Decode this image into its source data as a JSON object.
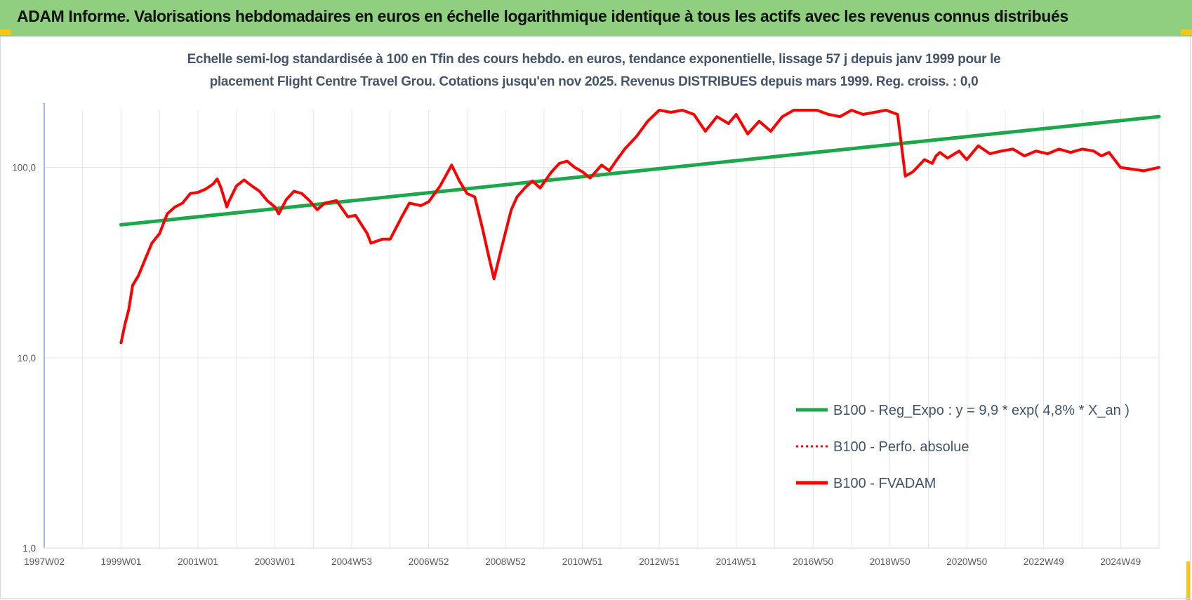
{
  "header": {
    "title": "ADAM Informe. Valorisations hebdomadaires en euros en échelle logarithmique identique à tous les actifs avec les revenus connus distribués",
    "background_color": "#8fcf7f",
    "corner_color": "#f5c518"
  },
  "chart_data": {
    "type": "line",
    "title_lines": [
      "Echelle semi-log standardisée à 100 en Tfin des cours hebdo. en euros, tendance exponentielle, lissage 57 j depuis janv 1999 pour le",
      "placement Flight Centre Travel Grou. Cotations jusqu'en nov 2025. Revenus DISTRIBUES depuis mars 1999. Reg. croiss. : 0,0"
    ],
    "y_scale": "log",
    "ylim": [
      1,
      200
    ],
    "y_ticks": [
      1,
      10,
      100
    ],
    "y_tick_labels": [
      "1,0",
      "10,0",
      "100,0"
    ],
    "xlim": [
      1997.0,
      2026.0
    ],
    "x_tick_positions": [
      1997.0,
      1999.0,
      2001.0,
      2003.0,
      2005.0,
      2007.0,
      2009.0,
      2011.0,
      2013.0,
      2015.0,
      2017.0,
      2019.0,
      2021.0,
      2023.0,
      2025.0
    ],
    "x_tick_labels": [
      "1997W02",
      "1999W01",
      "2001W01",
      "2003W01",
      "2004W53",
      "2006W52",
      "2008W52",
      "2010W51",
      "2012W51",
      "2014W51",
      "2016W50",
      "2018W50",
      "2020W50",
      "2022W49",
      "2024W49"
    ],
    "grid": "vertical",
    "legend_position": "right-middle",
    "series": [
      {
        "name": "B100 - Reg_Expo : y = 9,9 * exp( 4,8% *  X_an )",
        "color": "#1ca84a",
        "style": "solid",
        "x": [
          1999.0,
          2026.0
        ],
        "y": [
          50,
          185
        ]
      },
      {
        "name": "B100 - Perfo. absolue",
        "color": "#ff0000",
        "style": "dotted",
        "x": [],
        "y": []
      },
      {
        "name": "B100 - FVADAM",
        "color": "#ff0000",
        "style": "solid",
        "x": [
          1999.0,
          1999.1,
          1999.2,
          1999.3,
          1999.45,
          1999.6,
          1999.8,
          2000.0,
          2000.2,
          2000.4,
          2000.6,
          2000.8,
          2001.0,
          2001.2,
          2001.4,
          2001.5,
          2001.6,
          2001.75,
          2001.8,
          2002.0,
          2002.2,
          2002.4,
          2002.6,
          2002.8,
          2003.0,
          2003.1,
          2003.3,
          2003.5,
          2003.7,
          2003.9,
          2004.1,
          2004.3,
          2004.6,
          2004.9,
          2005.1,
          2005.4,
          2005.5,
          2005.8,
          2006.0,
          2006.3,
          2006.5,
          2006.8,
          2007.0,
          2007.3,
          2007.6,
          2007.8,
          2008.0,
          2008.2,
          2008.4,
          2008.55,
          2008.7,
          2008.9,
          2009.05,
          2009.15,
          2009.3,
          2009.5,
          2009.7,
          2009.9,
          2010.2,
          2010.4,
          2010.6,
          2010.8,
          2011.0,
          2011.2,
          2011.5,
          2011.7,
          2011.9,
          2012.1,
          2012.4,
          2012.7,
          2013.0,
          2013.3,
          2013.6,
          2013.9,
          2014.2,
          2014.5,
          2014.8,
          2015.0,
          2015.3,
          2015.6,
          2015.9,
          2016.2,
          2016.5,
          2016.8,
          2017.1,
          2017.4,
          2017.7,
          2018.0,
          2018.3,
          2018.6,
          2018.9,
          2019.2,
          2019.4,
          2019.6,
          2019.9,
          2020.1,
          2020.2,
          2020.3,
          2020.5,
          2020.8,
          2021.0,
          2021.3,
          2021.6,
          2021.9,
          2022.2,
          2022.5,
          2022.8,
          2023.1,
          2023.4,
          2023.7,
          2024.0,
          2024.3,
          2024.5,
          2024.7,
          2025.0,
          2025.3,
          2025.6,
          2026.0
        ],
        "y": [
          12,
          15,
          18,
          24,
          27,
          32,
          40,
          45,
          57,
          62,
          65,
          73,
          74,
          77,
          82,
          87,
          78,
          62,
          66,
          80,
          86,
          80,
          75,
          67,
          62,
          57,
          68,
          75,
          73,
          67,
          60,
          65,
          67,
          55,
          56,
          45,
          40,
          42,
          42,
          55,
          65,
          63,
          66,
          80,
          103,
          85,
          73,
          70,
          48,
          35,
          26,
          38,
          50,
          60,
          70,
          78,
          85,
          78,
          95,
          105,
          108,
          100,
          95,
          88,
          103,
          96,
          110,
          125,
          145,
          175,
          200,
          195,
          200,
          190,
          155,
          185,
          170,
          190,
          150,
          175,
          155,
          185,
          200,
          200,
          200,
          190,
          185,
          200,
          190,
          195,
          200,
          190,
          90,
          95,
          110,
          105,
          115,
          120,
          112,
          122,
          110,
          130,
          118,
          122,
          125,
          115,
          122,
          118,
          125,
          120,
          125,
          122,
          115,
          120,
          100,
          98,
          96,
          100
        ]
      }
    ]
  }
}
